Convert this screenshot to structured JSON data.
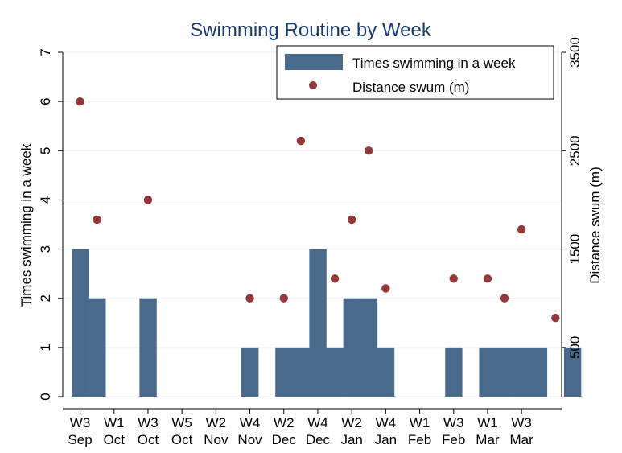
{
  "chart_data": {
    "type": "bar",
    "title": "Swimming Routine by Week",
    "ylabel": "Times swimming in a week",
    "y2label": "Distance swum (m)",
    "ylim": [
      0,
      7
    ],
    "y2lim": [
      0,
      3500
    ],
    "yticks": [
      0,
      1,
      2,
      3,
      4,
      5,
      6,
      7
    ],
    "y2ticks": [
      500,
      1500,
      2500,
      3500
    ],
    "legend": {
      "position": "top-right",
      "bar_label": "Times swimming in a week",
      "dot_label": "Distance swum (m)"
    },
    "colors": {
      "bar": "#4a6a8c",
      "dot": "#94373a",
      "title": "#1a3a6b"
    },
    "xticks": [
      {
        "week": "W3",
        "month": "Sep",
        "idx": 0
      },
      {
        "week": "W1",
        "month": "Oct",
        "idx": 2
      },
      {
        "week": "W3",
        "month": "Oct",
        "idx": 4
      },
      {
        "week": "W5",
        "month": "Oct",
        "idx": 6
      },
      {
        "week": "W2",
        "month": "Nov",
        "idx": 8
      },
      {
        "week": "W4",
        "month": "Nov",
        "idx": 10
      },
      {
        "week": "W2",
        "month": "Dec",
        "idx": 12
      },
      {
        "week": "W4",
        "month": "Dec",
        "idx": 14
      },
      {
        "week": "W2",
        "month": "Jan",
        "idx": 16
      },
      {
        "week": "W4",
        "month": "Jan",
        "idx": 18
      },
      {
        "week": "W1",
        "month": "Feb",
        "idx": 20
      },
      {
        "week": "W3",
        "month": "Feb",
        "idx": 22
      },
      {
        "week": "W1",
        "month": "Mar",
        "idx": 24
      },
      {
        "week": "W3",
        "month": "Mar",
        "idx": 26
      }
    ],
    "series": [
      {
        "name": "Times swimming in a week",
        "type": "bar",
        "values": [
          3,
          2,
          0,
          0,
          2,
          0,
          0,
          0,
          0,
          0,
          1,
          0,
          1,
          1,
          3,
          1,
          2,
          2,
          1,
          0,
          0,
          0,
          1,
          0,
          1,
          1,
          1,
          1,
          0,
          1
        ]
      },
      {
        "name": "Distance swum (m)",
        "type": "scatter",
        "points": [
          {
            "idx": 0,
            "value": 3000
          },
          {
            "idx": 1,
            "value": 1800
          },
          {
            "idx": 4,
            "value": 2000
          },
          {
            "idx": 10,
            "value": 1000
          },
          {
            "idx": 12,
            "value": 1000
          },
          {
            "idx": 13,
            "value": 2600
          },
          {
            "idx": 15,
            "value": 1200
          },
          {
            "idx": 16,
            "value": 1800
          },
          {
            "idx": 17,
            "value": 2500
          },
          {
            "idx": 18,
            "value": 1100
          },
          {
            "idx": 22,
            "value": 1200
          },
          {
            "idx": 24,
            "value": 1200
          },
          {
            "idx": 25,
            "value": 1000
          },
          {
            "idx": 26,
            "value": 1700
          },
          {
            "idx": 28,
            "value": 800
          }
        ]
      }
    ]
  }
}
